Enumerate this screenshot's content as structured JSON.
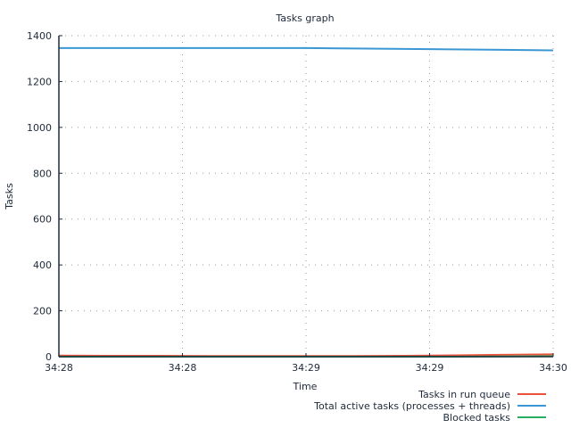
{
  "chart_data": {
    "type": "line",
    "title": "Tasks graph",
    "xlabel": "Time",
    "ylabel": "Tasks",
    "x_tick_labels": [
      "34:28",
      "34:28",
      "34:29",
      "34:29",
      "34:30"
    ],
    "y_ticks": [
      0,
      200,
      400,
      600,
      800,
      1000,
      1200,
      1400
    ],
    "ylim": [
      0,
      1400
    ],
    "grid": true,
    "legend_position": "bottom-right",
    "series": [
      {
        "name": "Tasks in run queue",
        "color": "#e8513a",
        "values": [
          5,
          4,
          4,
          3,
          3,
          3,
          3,
          4,
          6,
          8,
          10
        ]
      },
      {
        "name": "Total active tasks (processes + threads)",
        "color": "#3a97d4",
        "values": [
          1346,
          1346,
          1346,
          1346,
          1346,
          1346,
          1344,
          1342,
          1340,
          1338,
          1336
        ]
      },
      {
        "name": "Blocked tasks",
        "color": "#27ae60",
        "values": [
          0,
          0,
          0,
          0,
          0,
          0,
          0,
          0,
          0,
          1,
          2
        ]
      }
    ]
  }
}
